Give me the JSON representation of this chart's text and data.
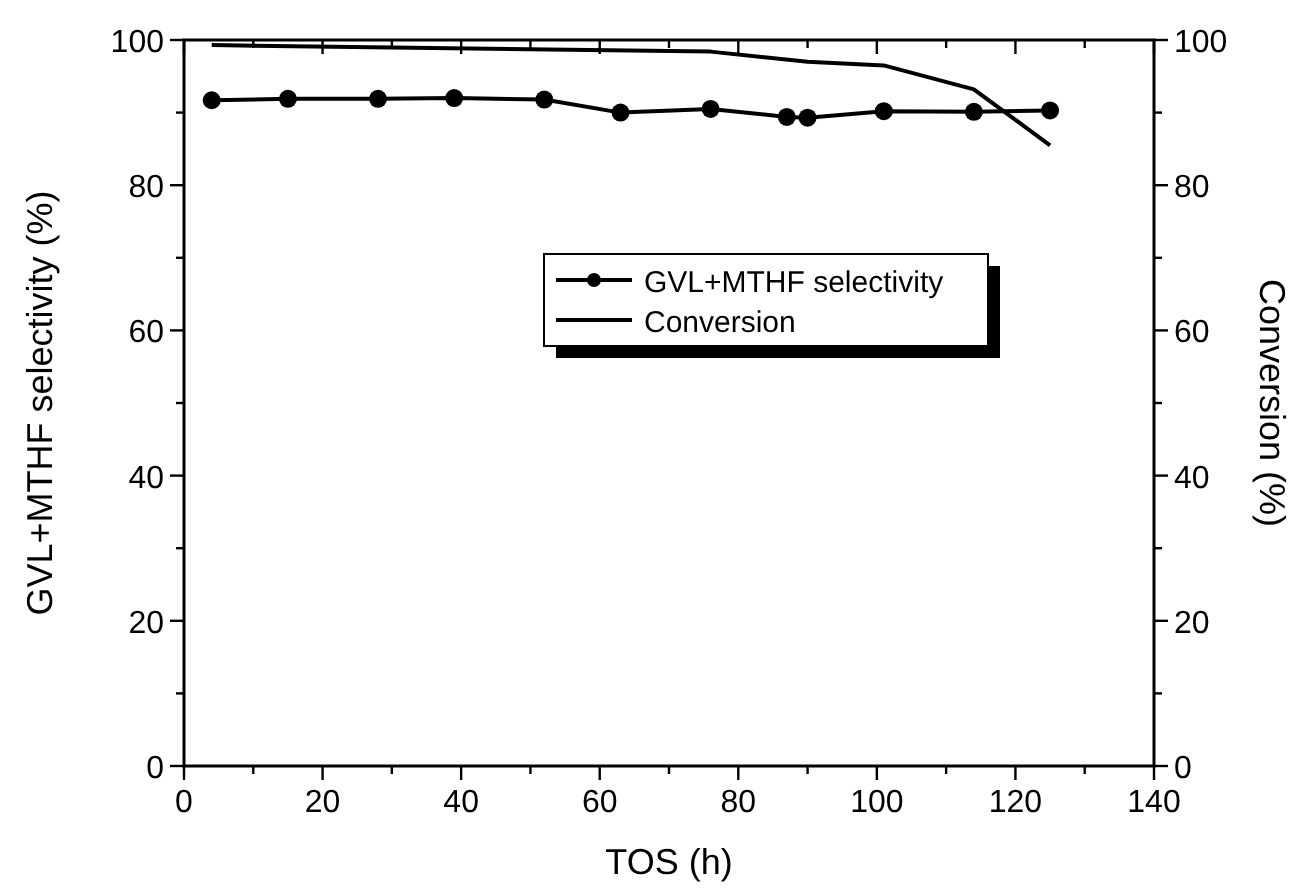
{
  "chart_data": {
    "type": "line",
    "xlabel": "TOS (h)",
    "ylabel": "GVL+MTHF selectivity (%)",
    "y2label": "Conversion (%)",
    "xlim": [
      0,
      140
    ],
    "xticks": [
      0,
      {
        "value": 10,
        "label": null
      },
      20,
      {
        "value": 30,
        "label": null
      },
      40,
      {
        "value": 50,
        "label": null
      },
      60,
      {
        "value": 70,
        "label": null
      },
      80,
      {
        "value": 90,
        "label": null
      },
      100,
      {
        "value": 110,
        "label": null
      },
      120,
      {
        "value": 130,
        "label": null
      },
      140
    ],
    "ylim": [
      0,
      100
    ],
    "yticks": [
      0,
      {
        "value": 10,
        "label": null
      },
      20,
      {
        "value": 30,
        "label": null
      },
      40,
      {
        "value": 50,
        "label": null
      },
      60,
      {
        "value": 70,
        "label": null
      },
      80,
      {
        "value": 90,
        "label": null
      },
      100
    ],
    "y2lim": [
      0,
      100
    ],
    "y2ticks": [
      0,
      {
        "value": 10,
        "label": null
      },
      20,
      {
        "value": 30,
        "label": null
      },
      40,
      {
        "value": 50,
        "label": null
      },
      60,
      {
        "value": 70,
        "label": null
      },
      80,
      {
        "value": 90,
        "label": null
      },
      100
    ],
    "legend": "right",
    "grid": false,
    "series": [
      {
        "name": "GVL+MTHF selectivity",
        "color": "#000000",
        "marker": "circle",
        "line_style": "solid",
        "x": [
          4,
          15,
          28,
          39,
          52,
          63,
          76,
          87,
          90,
          101,
          114,
          125
        ],
        "values": [
          91.7,
          91.9,
          91.9,
          92,
          91.8,
          90,
          90.5,
          89.4,
          89.3,
          90.2,
          90.1,
          90.3
        ]
      },
      {
        "name": "Conversion",
        "color": "#000000",
        "marker": "none",
        "line_style": "solid",
        "axis": "y2",
        "x": [
          4,
          76,
          90,
          101,
          114,
          125
        ],
        "values": [
          99.3,
          98.4,
          97,
          96.5,
          93.2,
          85.5
        ]
      }
    ]
  }
}
